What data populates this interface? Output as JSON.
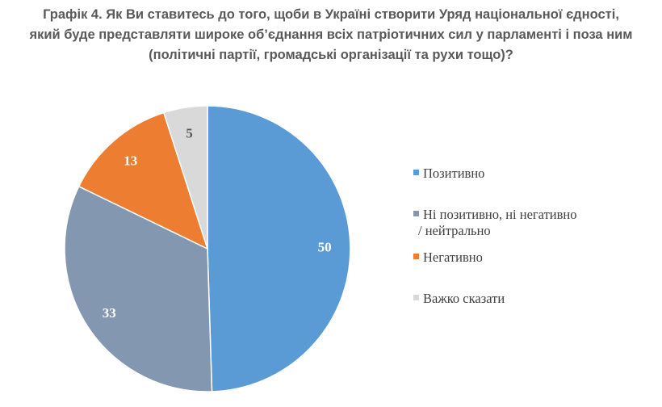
{
  "title": {
    "lines": [
      "Графік 4. Як Ви ставитесь до того, щоби в Україні створити Уряд національної єдності,",
      "який буде представляти широке об’єднання всіх патріотичних сил у парламенті і поза ним",
      "(політичні партії, громадські організації та рухи тощо)?"
    ]
  },
  "chart_data": {
    "type": "pie",
    "title": "Графік 4. Як Ви ставитесь до того, щоби в Україні створити Уряд національної єдності, який буде представляти широке об’єднання всіх патріотичних сил у парламенті і поза ним (політичні партії, громадські організації та рухи тощо)?",
    "slices": [
      {
        "label": "Позитивно",
        "legend_lines": [
          "Позитивно"
        ],
        "value": 50,
        "color": "#5B9BD5",
        "label_color": "#ffffff"
      },
      {
        "label": "Ні позитивно, ні негативно / нейтрально",
        "legend_lines": [
          "Ні позитивно, ні негативно",
          "/ нейтрально"
        ],
        "value": 33,
        "color": "#8497B0",
        "label_color": "#ffffff"
      },
      {
        "label": "Негативно",
        "legend_lines": [
          "Негативно"
        ],
        "value": 13,
        "color": "#ED7D31",
        "label_color": "#ffffff"
      },
      {
        "label": "Важко сказати",
        "legend_lines": [
          "Важко сказати"
        ],
        "value": 5,
        "color": "#D9D9D9",
        "label_color": "#595959"
      }
    ],
    "start_angle": "12 o'clock",
    "direction": "clockwise",
    "legend_position": "right"
  }
}
